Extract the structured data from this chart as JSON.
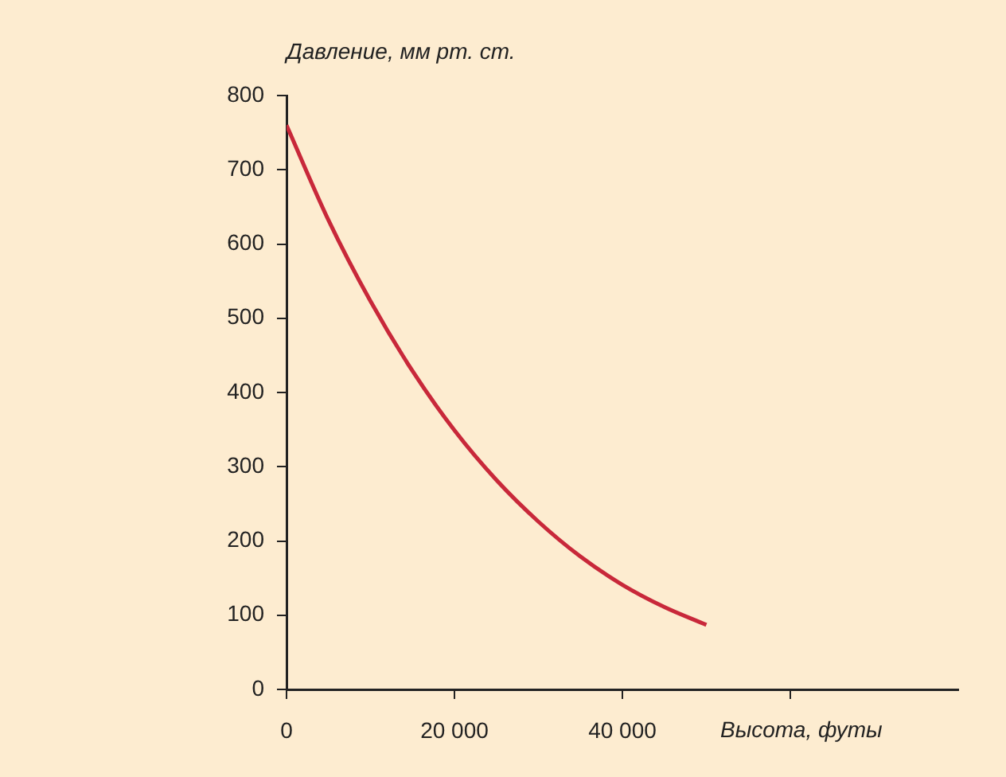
{
  "chart_data": {
    "type": "line",
    "xlabel": "Высота, футы",
    "ylabel": "Давление, мм рт. ст.",
    "x": [
      0,
      5000,
      10000,
      15000,
      20000,
      25000,
      30000,
      35000,
      40000,
      45000,
      50000
    ],
    "series": [
      {
        "color": "#c8283a",
        "values": [
          760,
          632,
          523,
          429,
          349,
          282,
          226,
          179,
          141,
          111,
          87
        ]
      }
    ],
    "xlim": [
      0,
      80000
    ],
    "xticks": [
      0,
      {
        "value": 20000,
        "label": "20 000"
      },
      {
        "value": 40000,
        "label": "40 000"
      },
      {
        "value": 60000,
        "label": null
      }
    ],
    "ylim": [
      0,
      800
    ],
    "yticks": [
      0,
      100,
      200,
      300,
      400,
      500,
      600,
      700,
      800
    ],
    "marker": "none",
    "line_style": "solid",
    "legend": false
  }
}
